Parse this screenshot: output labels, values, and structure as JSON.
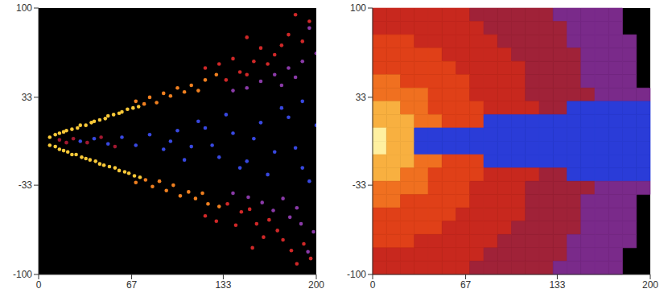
{
  "chart_data": [
    {
      "type": "scatter",
      "xlim": [
        0,
        200
      ],
      "ylim": [
        -100,
        100
      ],
      "xticks": [
        0,
        67,
        133,
        200
      ],
      "yticks": [
        100,
        33,
        -33,
        -100
      ],
      "grid": false,
      "series": [
        {
          "color": "#f8c838",
          "values": [
            [
              8,
              3
            ],
            [
              12,
              5
            ],
            [
              15,
              6
            ],
            [
              18,
              7
            ],
            [
              20,
              8
            ],
            [
              24,
              9
            ],
            [
              28,
              10
            ],
            [
              30,
              12
            ],
            [
              34,
              12
            ],
            [
              38,
              14
            ],
            [
              40,
              15
            ],
            [
              44,
              16
            ],
            [
              48,
              17
            ],
            [
              50,
              19
            ],
            [
              54,
              20
            ],
            [
              58,
              21
            ],
            [
              60,
              22
            ],
            [
              64,
              24
            ],
            [
              68,
              25
            ],
            [
              72,
              26
            ],
            [
              8,
              -3
            ],
            [
              12,
              -4
            ],
            [
              15,
              -6
            ],
            [
              18,
              -7
            ],
            [
              21,
              -8
            ],
            [
              24,
              -10
            ],
            [
              27,
              -10
            ],
            [
              31,
              -12
            ],
            [
              34,
              -13
            ],
            [
              37,
              -14
            ],
            [
              41,
              -15
            ],
            [
              44,
              -17
            ],
            [
              47,
              -18
            ],
            [
              51,
              -19
            ],
            [
              55,
              -20
            ],
            [
              58,
              -22
            ],
            [
              62,
              -23
            ],
            [
              65,
              -24
            ],
            [
              69,
              -26
            ],
            [
              73,
              -27
            ]
          ]
        },
        {
          "color": "#f08020",
          "values": [
            [
              70,
              30
            ],
            [
              76,
              28
            ],
            [
              80,
              33
            ],
            [
              85,
              29
            ],
            [
              90,
              36
            ],
            [
              95,
              34
            ],
            [
              100,
              40
            ],
            [
              105,
              37
            ],
            [
              110,
              42
            ],
            [
              120,
              46
            ],
            [
              128,
              50
            ],
            [
              115,
              38
            ],
            [
              70,
              -31
            ],
            [
              77,
              -29
            ],
            [
              82,
              -34
            ],
            [
              87,
              -30
            ],
            [
              92,
              -37
            ],
            [
              97,
              -33
            ],
            [
              102,
              -41
            ],
            [
              108,
              -38
            ],
            [
              113,
              -43
            ],
            [
              122,
              -47
            ],
            [
              130,
              -49
            ],
            [
              118,
              -39
            ]
          ]
        },
        {
          "color": "#d02828",
          "values": [
            [
              120,
              55
            ],
            [
              130,
              58
            ],
            [
              135,
              46
            ],
            [
              140,
              62
            ],
            [
              145,
              52
            ],
            [
              150,
              50
            ],
            [
              155,
              60
            ],
            [
              160,
              70
            ],
            [
              165,
              58
            ],
            [
              170,
              65
            ],
            [
              175,
              72
            ],
            [
              180,
              80
            ],
            [
              185,
              95
            ],
            [
              190,
              75
            ],
            [
              195,
              90
            ],
            [
              150,
              78
            ],
            [
              120,
              -56
            ],
            [
              128,
              -60
            ],
            [
              136,
              -47
            ],
            [
              142,
              -63
            ],
            [
              146,
              -53
            ],
            [
              152,
              -51
            ],
            [
              157,
              -62
            ],
            [
              162,
              -72
            ],
            [
              166,
              -59
            ],
            [
              172,
              -67
            ],
            [
              176,
              -74
            ],
            [
              182,
              -82
            ],
            [
              186,
              -92
            ],
            [
              191,
              -77
            ],
            [
              196,
              -88
            ],
            [
              154,
              -80
            ]
          ]
        },
        {
          "color": "#8a3aa8",
          "values": [
            [
              140,
              38
            ],
            [
              150,
              40
            ],
            [
              160,
              45
            ],
            [
              170,
              50
            ],
            [
              175,
              42
            ],
            [
              180,
              55
            ],
            [
              190,
              60
            ],
            [
              200,
              66
            ],
            [
              185,
              48
            ],
            [
              195,
              85
            ],
            [
              140,
              -39
            ],
            [
              151,
              -42
            ],
            [
              161,
              -46
            ],
            [
              169,
              -52
            ],
            [
              176,
              -43
            ],
            [
              181,
              -57
            ],
            [
              189,
              -62
            ],
            [
              198,
              -68
            ],
            [
              186,
              -50
            ],
            [
              194,
              -83
            ]
          ]
        },
        {
          "color": "#3848e0",
          "values": [
            [
              30,
              0
            ],
            [
              40,
              2
            ],
            [
              50,
              -2
            ],
            [
              60,
              3
            ],
            [
              70,
              -3
            ],
            [
              80,
              5
            ],
            [
              90,
              -6
            ],
            [
              95,
              0
            ],
            [
              100,
              8
            ],
            [
              110,
              -4
            ],
            [
              115,
              15
            ],
            [
              120,
              10
            ],
            [
              125,
              -3
            ],
            [
              130,
              -12
            ],
            [
              140,
              6
            ],
            [
              145,
              -20
            ],
            [
              150,
              -15
            ],
            [
              155,
              2
            ],
            [
              160,
              14
            ],
            [
              165,
              -25
            ],
            [
              170,
              -8
            ],
            [
              175,
              25
            ],
            [
              180,
              18
            ],
            [
              185,
              -5
            ],
            [
              190,
              -20
            ],
            [
              200,
              12
            ],
            [
              135,
              20
            ],
            [
              105,
              -14
            ],
            [
              190,
              30
            ],
            [
              195,
              -30
            ]
          ]
        },
        {
          "color": "#a01830",
          "values": [
            [
              15,
              1
            ],
            [
              20,
              -1
            ],
            [
              25,
              2
            ],
            [
              35,
              -1
            ],
            [
              45,
              3
            ],
            [
              55,
              -4
            ]
          ]
        }
      ]
    },
    {
      "type": "heatmap",
      "xlim": [
        0,
        200
      ],
      "ylim": [
        -100,
        100
      ],
      "xticks": [
        0,
        67,
        133,
        200
      ],
      "yticks": [
        100,
        33,
        -33,
        -100
      ],
      "grid": false,
      "cells": [
        [
          5,
          5,
          5,
          5,
          5,
          5,
          5,
          4,
          4,
          4,
          4,
          4,
          4,
          3,
          3,
          3,
          3,
          3,
          null,
          null
        ],
        [
          5,
          5,
          5,
          5,
          5,
          5,
          5,
          5,
          4,
          4,
          4,
          4,
          4,
          4,
          3,
          3,
          3,
          3,
          null,
          null
        ],
        [
          6,
          6,
          6,
          5,
          5,
          5,
          5,
          5,
          5,
          4,
          4,
          4,
          4,
          4,
          3,
          3,
          3,
          3,
          3,
          null
        ],
        [
          6,
          6,
          6,
          6,
          6,
          5,
          5,
          5,
          5,
          5,
          4,
          4,
          4,
          4,
          4,
          3,
          3,
          3,
          3,
          null
        ],
        [
          6,
          6,
          6,
          6,
          6,
          6,
          5,
          5,
          5,
          5,
          5,
          4,
          4,
          4,
          4,
          3,
          3,
          3,
          3,
          null
        ],
        [
          7,
          7,
          6,
          6,
          6,
          6,
          6,
          5,
          5,
          5,
          5,
          4,
          4,
          4,
          4,
          3,
          3,
          3,
          3,
          null
        ],
        [
          7,
          7,
          7,
          7,
          6,
          6,
          6,
          5,
          5,
          5,
          5,
          4,
          4,
          4,
          4,
          4,
          3,
          3,
          3,
          3
        ],
        [
          8,
          8,
          7,
          7,
          6,
          6,
          6,
          6,
          5,
          5,
          5,
          5,
          4,
          4,
          1,
          1,
          1,
          1,
          1,
          1
        ],
        [
          8,
          8,
          8,
          7,
          7,
          6,
          6,
          6,
          1,
          1,
          1,
          1,
          1,
          1,
          1,
          1,
          1,
          1,
          1,
          1
        ],
        [
          9,
          8,
          8,
          1,
          1,
          1,
          1,
          1,
          1,
          1,
          1,
          1,
          1,
          1,
          1,
          1,
          1,
          1,
          1,
          1
        ],
        [
          9,
          8,
          8,
          1,
          1,
          1,
          1,
          1,
          1,
          1,
          1,
          1,
          1,
          1,
          1,
          1,
          1,
          1,
          1,
          1
        ],
        [
          8,
          8,
          8,
          7,
          7,
          6,
          6,
          6,
          1,
          1,
          1,
          1,
          1,
          1,
          1,
          1,
          1,
          1,
          1,
          1
        ],
        [
          8,
          8,
          7,
          7,
          6,
          6,
          6,
          6,
          5,
          5,
          5,
          5,
          4,
          4,
          1,
          1,
          1,
          1,
          1,
          1
        ],
        [
          7,
          7,
          7,
          7,
          6,
          6,
          6,
          5,
          5,
          5,
          5,
          4,
          4,
          4,
          4,
          4,
          3,
          3,
          3,
          3
        ],
        [
          7,
          7,
          6,
          6,
          6,
          6,
          6,
          5,
          5,
          5,
          5,
          4,
          4,
          4,
          4,
          3,
          3,
          3,
          3,
          null
        ],
        [
          6,
          6,
          6,
          6,
          6,
          6,
          5,
          5,
          5,
          5,
          5,
          4,
          4,
          4,
          4,
          3,
          3,
          3,
          3,
          null
        ],
        [
          6,
          6,
          6,
          6,
          6,
          5,
          5,
          5,
          5,
          5,
          4,
          4,
          4,
          4,
          4,
          3,
          3,
          3,
          3,
          null
        ],
        [
          6,
          6,
          6,
          5,
          5,
          5,
          5,
          5,
          5,
          4,
          4,
          4,
          4,
          4,
          3,
          3,
          3,
          3,
          3,
          null
        ],
        [
          5,
          5,
          5,
          5,
          5,
          5,
          5,
          5,
          4,
          4,
          4,
          4,
          4,
          4,
          3,
          3,
          3,
          3,
          null,
          null
        ],
        [
          5,
          5,
          5,
          5,
          5,
          5,
          5,
          4,
          4,
          4,
          4,
          4,
          4,
          3,
          3,
          3,
          3,
          3,
          null,
          null
        ]
      ]
    }
  ]
}
